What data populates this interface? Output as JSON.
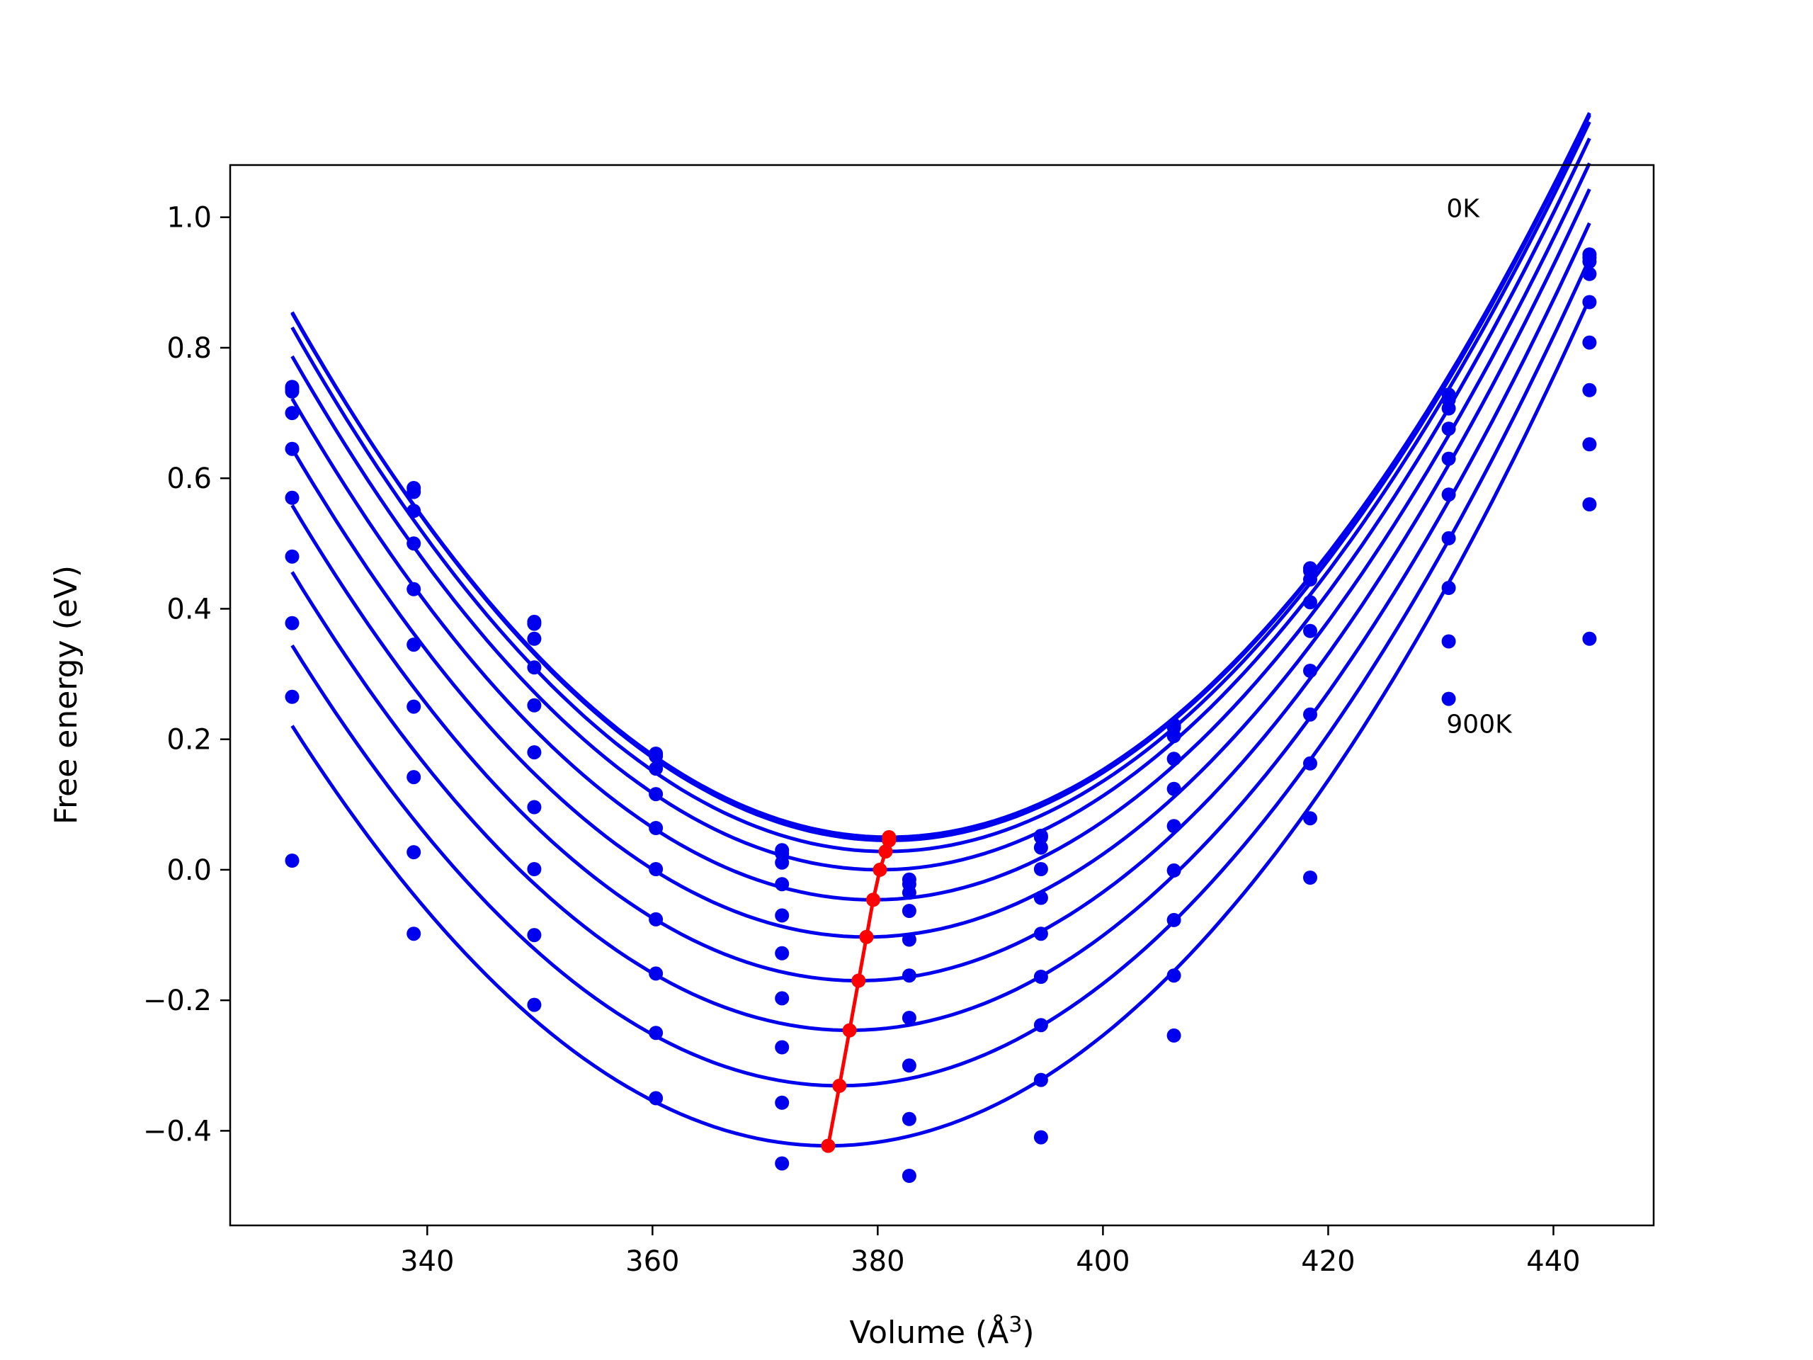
{
  "chart_data": {
    "type": "scatter",
    "title": "",
    "xlabel": "Volume (Å",
    "xlabel_sup": "3",
    "xlabel_close": ")",
    "ylabel": "Free energy (eV)",
    "xlim": [
      322.5,
      448.9
    ],
    "ylim": [
      -0.545,
      1.08
    ],
    "xticks": [
      340,
      360,
      380,
      400,
      420,
      440
    ],
    "xtick_labels": [
      "340",
      "360",
      "380",
      "400",
      "420",
      "440"
    ],
    "yticks": [
      -0.4,
      -0.2,
      0.0,
      0.2,
      0.4,
      0.6,
      0.8,
      1.0
    ],
    "ytick_labels": [
      "−0.4",
      "−0.2",
      "0.0",
      "0.2",
      "0.4",
      "0.6",
      "0.8",
      "1.0"
    ],
    "grid": false,
    "annotations": [
      {
        "text": "0K",
        "x": 430.5,
        "y": 1.0
      },
      {
        "text": "900K",
        "x": 430.5,
        "y": 0.21
      }
    ],
    "colors": {
      "points": "#0000ee",
      "fits": "#0000ee",
      "minima": "#ff0000"
    },
    "volumes": [
      328.0,
      338.8,
      349.5,
      360.3,
      371.5,
      382.8,
      394.5,
      406.3,
      418.4,
      430.7,
      443.2
    ],
    "curve_x_range": [
      328.0,
      443.2
    ],
    "series": [
      {
        "temperature_index": 0,
        "min_volume": 381.0,
        "min_energy": 0.05,
        "curvature": 0.0002859,
        "points": [
          0.74,
          0.585,
          0.38,
          0.178,
          0.03,
          -0.015,
          0.052,
          0.222,
          0.462,
          0.728,
          0.943
        ]
      },
      {
        "temperature_index": 1,
        "min_volume": 381.0,
        "min_energy": 0.045,
        "curvature": 0.0002882,
        "points": [
          0.737,
          0.579,
          0.377,
          0.174,
          0.025,
          -0.022,
          0.05,
          0.218,
          0.458,
          0.72,
          0.938
        ]
      },
      {
        "temperature_index": 2,
        "min_volume": 380.7,
        "min_energy": 0.028,
        "curvature": 0.0002892,
        "points": [
          0.733,
          0.55,
          0.354,
          0.155,
          0.011,
          -0.035,
          0.034,
          0.205,
          0.445,
          0.707,
          0.932
        ]
      },
      {
        "temperature_index": 3,
        "min_volume": 380.2,
        "min_energy": 0.0,
        "curvature": 0.0002888,
        "points": [
          0.7,
          0.5,
          0.31,
          0.116,
          -0.022,
          -0.063,
          0.001,
          0.17,
          0.41,
          0.676,
          0.913
        ]
      },
      {
        "temperature_index": 4,
        "min_volume": 379.6,
        "min_energy": -0.046,
        "curvature": 0.0002885,
        "points": [
          0.645,
          0.43,
          0.252,
          0.064,
          -0.07,
          -0.107,
          -0.043,
          0.124,
          0.366,
          0.63,
          0.87
        ]
      },
      {
        "temperature_index": 5,
        "min_volume": 379.0,
        "min_energy": -0.103,
        "curvature": 0.0002877,
        "points": [
          0.57,
          0.345,
          0.18,
          0.001,
          -0.128,
          -0.162,
          -0.098,
          0.067,
          0.305,
          0.575,
          0.808
        ]
      },
      {
        "temperature_index": 6,
        "min_volume": 378.3,
        "min_energy": -0.17,
        "curvature": 0.000288,
        "points": [
          0.48,
          0.25,
          0.096,
          -0.076,
          -0.197,
          -0.227,
          -0.164,
          -0.001,
          0.238,
          0.508,
          0.735
        ]
      },
      {
        "temperature_index": 7,
        "min_volume": 377.5,
        "min_energy": -0.246,
        "curvature": 0.0002866,
        "points": [
          0.378,
          0.142,
          0.001,
          -0.159,
          -0.272,
          -0.3,
          -0.238,
          -0.077,
          0.163,
          0.432,
          0.652
        ]
      },
      {
        "temperature_index": 8,
        "min_volume": 376.6,
        "min_energy": -0.331,
        "curvature": 0.0002857,
        "points": [
          0.265,
          0.027,
          -0.1,
          -0.25,
          -0.357,
          -0.382,
          -0.322,
          -0.162,
          0.079,
          0.35,
          0.56
        ]
      },
      {
        "temperature_index": 9,
        "min_volume": 375.6,
        "min_energy": -0.423,
        "curvature": 0.0002841,
        "points": [
          0.014,
          -0.098,
          -0.207,
          -0.35,
          -0.45,
          -0.469,
          -0.41,
          -0.254,
          -0.012,
          0.262,
          0.354
        ]
      }
    ]
  }
}
